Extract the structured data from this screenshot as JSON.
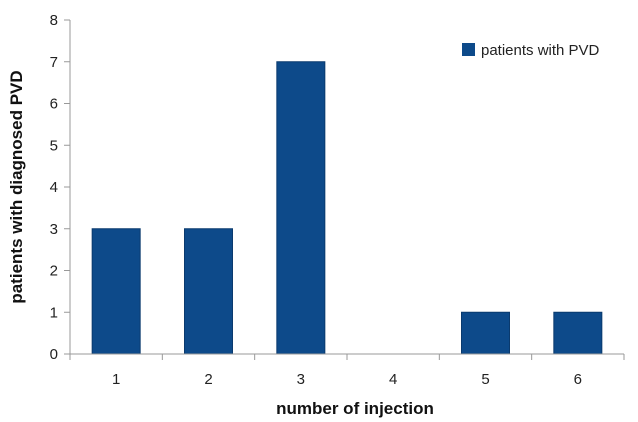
{
  "chart_data": {
    "type": "bar",
    "categories": [
      "1",
      "2",
      "3",
      "4",
      "5",
      "6"
    ],
    "series": [
      {
        "name": "patients with PVD",
        "values": [
          3,
          3,
          7,
          0,
          1,
          1
        ],
        "color": "#0d4a8a"
      }
    ],
    "xlabel": "number of injection",
    "ylabel": "patients with diagnosed PVD",
    "ylim": [
      0,
      8
    ],
    "yticks": [
      "0",
      "1",
      "2",
      "3",
      "4",
      "5",
      "6",
      "7",
      "8"
    ],
    "grid": false,
    "legend_position": "top-right"
  }
}
